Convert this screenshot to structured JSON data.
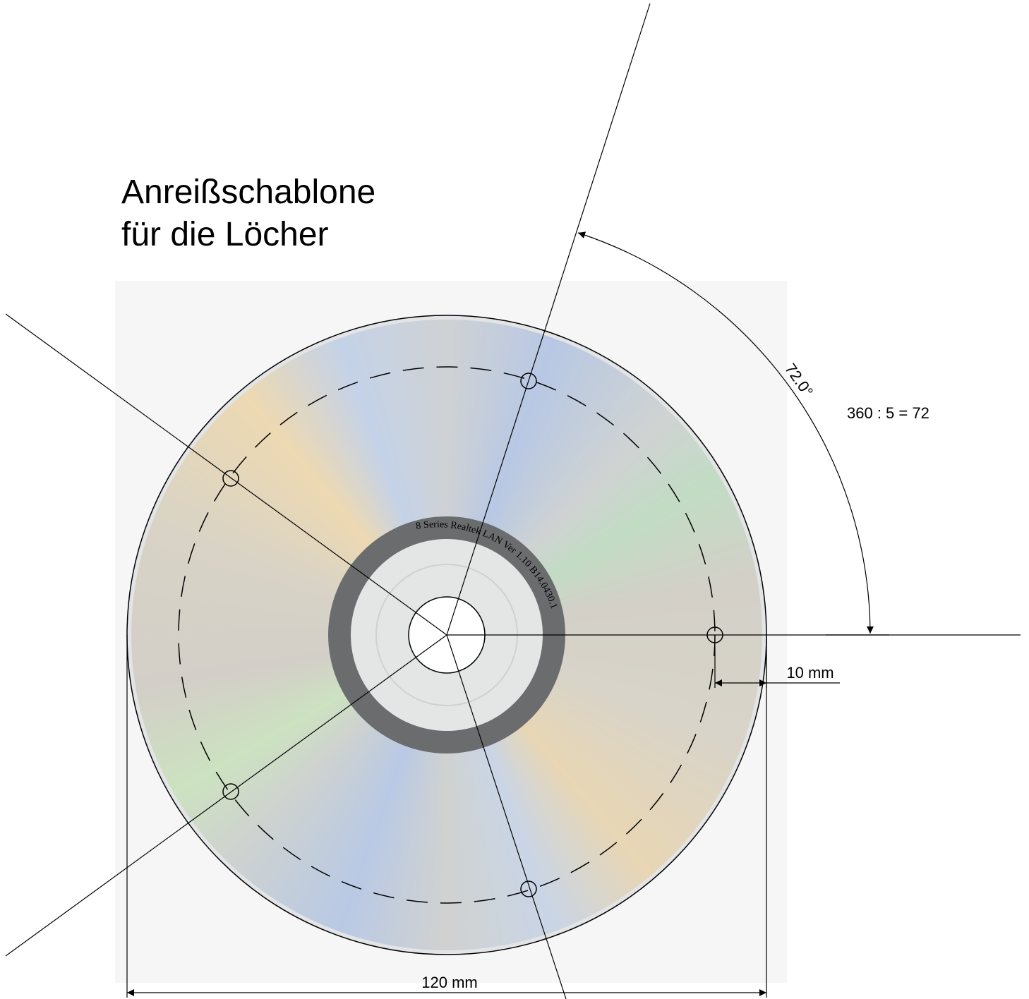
{
  "title_lines": [
    "Anreißschablone",
    "für die Löcher"
  ],
  "angle_label": "72.0°",
  "formula": "360 : 5 = 72",
  "hole_offset_label": "10 mm",
  "diameter_label": "120 mm",
  "disc_label": "8 Series Realtek LAN Ver 1.10 B14.0430.1"
}
